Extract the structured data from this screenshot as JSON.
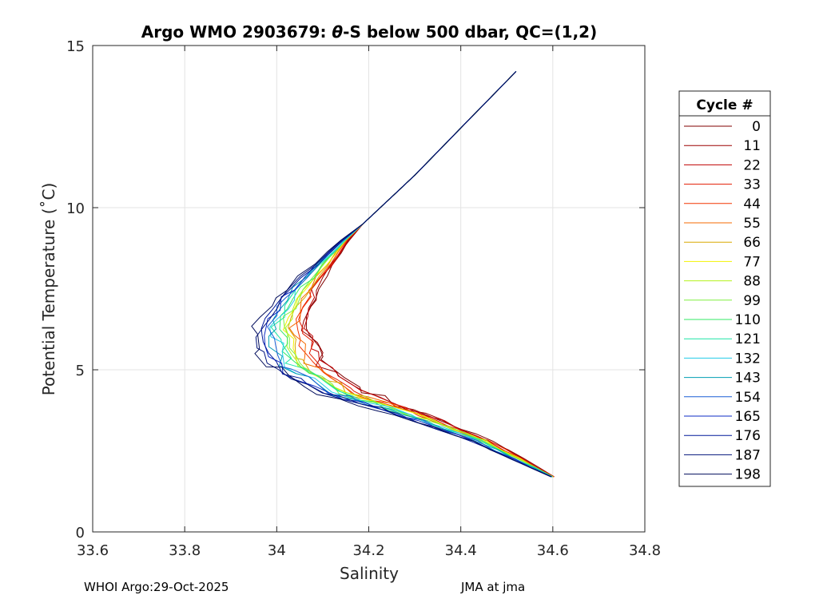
{
  "chart_data": {
    "type": "line",
    "title_prefix": "Argo WMO 2903679: ",
    "title_theta": "θ",
    "title_suffix": "-S below 500 dbar,  QC=(1,2)",
    "xlabel": "Salinity",
    "ylabel": "Potential Temperature (˚C)",
    "xlim": [
      33.6,
      34.8
    ],
    "ylim": [
      0,
      15
    ],
    "xticks": [
      "33.6",
      "33.8",
      "34",
      "34.2",
      "34.4",
      "34.6",
      "34.8"
    ],
    "yticks": [
      "0",
      "5",
      "10",
      "15"
    ],
    "grid": true,
    "legend": {
      "title": "Cycle #",
      "position": "right",
      "entries": [
        {
          "label": "0",
          "color": "#800000"
        },
        {
          "label": "11",
          "color": "#9c0000"
        },
        {
          "label": "22",
          "color": "#bf0000"
        },
        {
          "label": "33",
          "color": "#e31a00"
        },
        {
          "label": "44",
          "color": "#f23300"
        },
        {
          "label": "55",
          "color": "#f56a00"
        },
        {
          "label": "66",
          "color": "#d9a800"
        },
        {
          "label": "77",
          "color": "#f2f200"
        },
        {
          "label": "88",
          "color": "#b3f21a"
        },
        {
          "label": "99",
          "color": "#80f040"
        },
        {
          "label": "110",
          "color": "#33e866"
        },
        {
          "label": "121",
          "color": "#1ae6a6"
        },
        {
          "label": "132",
          "color": "#22cce8"
        },
        {
          "label": "143",
          "color": "#009eb3"
        },
        {
          "label": "154",
          "color": "#1a5fd6"
        },
        {
          "label": "165",
          "color": "#0d2bc4"
        },
        {
          "label": "176",
          "color": "#001899"
        },
        {
          "label": "187",
          "color": "#00127a"
        },
        {
          "label": "198",
          "color": "#000c5c"
        }
      ]
    },
    "typical_profile": [
      {
        "s": 34.6,
        "t": 1.7
      },
      {
        "s": 34.45,
        "t": 2.8
      },
      {
        "s": 34.3,
        "t": 3.6
      },
      {
        "s": 34.15,
        "t": 4.3
      },
      {
        "s": 34.05,
        "t": 5.2
      },
      {
        "s": 34.02,
        "t": 6.3
      },
      {
        "s": 34.06,
        "t": 7.5
      },
      {
        "s": 34.15,
        "t": 9.0
      },
      {
        "s": 34.3,
        "t": 11.0
      },
      {
        "s": 34.52,
        "t": 14.2
      }
    ]
  },
  "footer": {
    "left": "WHOI Argo:29-Oct-2025",
    "right": "JMA at jma"
  }
}
